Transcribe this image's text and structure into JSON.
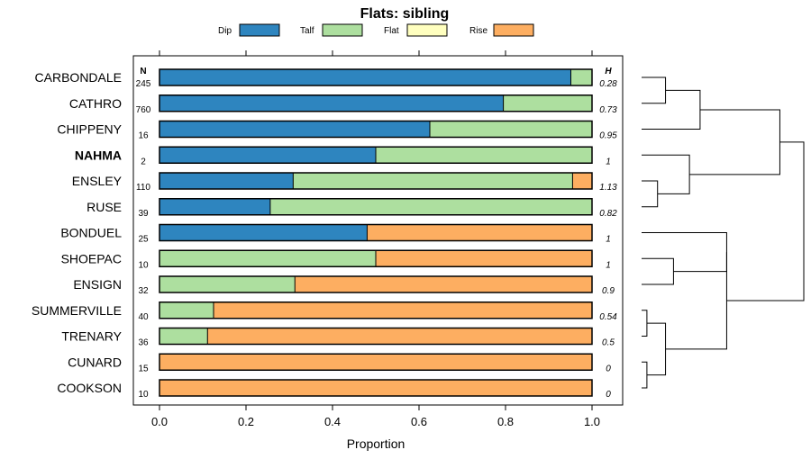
{
  "chart_data": {
    "type": "bar",
    "orientation": "horizontal",
    "stacked": true,
    "title": "Flats: sibling",
    "xlabel": "Proportion",
    "xlim": [
      0,
      1
    ],
    "xticks": [
      "0.0",
      "0.2",
      "0.4",
      "0.6",
      "0.8",
      "1.0"
    ],
    "xtick_values": [
      0,
      0.2,
      0.4,
      0.6,
      0.8,
      1.0
    ],
    "legend": [
      {
        "name": "Dip",
        "color": "#2e85bf"
      },
      {
        "name": "Talf",
        "color": "#addf9f"
      },
      {
        "name": "Flat",
        "color": "#ffffbf"
      },
      {
        "name": "Rise",
        "color": "#fdae61"
      }
    ],
    "n_header": "N",
    "h_header": "H",
    "categories": [
      "CARBONDALE",
      "CATHRO",
      "CHIPPENY",
      "NAHMA",
      "ENSLEY",
      "RUSE",
      "BONDUEL",
      "SHOEPAC",
      "ENSIGN",
      "SUMMERVILLE",
      "TRENARY",
      "CUNARD",
      "COOKSON"
    ],
    "bold_category": "NAHMA",
    "n": [
      "245",
      "760",
      "16",
      "2",
      "110",
      "39",
      "25",
      "10",
      "32",
      "40",
      "36",
      "15",
      "10"
    ],
    "h": [
      "0.28",
      "0.73",
      "0.95",
      "1",
      "1.13",
      "0.82",
      "1",
      "1",
      "0.9",
      "0.54",
      "0.5",
      "0",
      "0"
    ],
    "series": [
      {
        "name": "Dip",
        "values": [
          0.951,
          0.795,
          0.625,
          0.5,
          0.309,
          0.256,
          0.48,
          0,
          0,
          0,
          0,
          0,
          0
        ]
      },
      {
        "name": "Talf",
        "values": [
          0.049,
          0.205,
          0.375,
          0.5,
          0.646,
          0.744,
          0,
          0.5,
          0.313,
          0.125,
          0.111,
          0,
          0
        ]
      },
      {
        "name": "Flat",
        "values": [
          0,
          0,
          0,
          0,
          0,
          0,
          0,
          0,
          0,
          0,
          0,
          0,
          0
        ]
      },
      {
        "name": "Rise",
        "values": [
          0,
          0,
          0,
          0,
          0.045,
          0,
          0.52,
          0.5,
          0.687,
          0.875,
          0.889,
          1,
          1
        ]
      }
    ],
    "dendrogram_merges": [
      {
        "a": [
          "leaf",
          0
        ],
        "b": [
          "leaf",
          1
        ],
        "height": 0.09
      },
      {
        "a": [
          "node",
          0
        ],
        "b": [
          "leaf",
          2
        ],
        "height": 0.22
      },
      {
        "a": [
          "leaf",
          4
        ],
        "b": [
          "leaf",
          5
        ],
        "height": 0.06
      },
      {
        "a": [
          "leaf",
          3
        ],
        "b": [
          "node",
          2
        ],
        "height": 0.18
      },
      {
        "a": [
          "node",
          1
        ],
        "b": [
          "node",
          3
        ],
        "height": 0.52
      },
      {
        "a": [
          "leaf",
          7
        ],
        "b": [
          "leaf",
          8
        ],
        "height": 0.12
      },
      {
        "a": [
          "leaf",
          9
        ],
        "b": [
          "leaf",
          10
        ],
        "height": 0.02
      },
      {
        "a": [
          "leaf",
          11
        ],
        "b": [
          "leaf",
          12
        ],
        "height": 0.02
      },
      {
        "a": [
          "node",
          6
        ],
        "b": [
          "node",
          7
        ],
        "height": 0.09
      },
      {
        "a": [
          "leaf",
          6
        ],
        "b": [
          "node",
          5
        ],
        "height": 0.32
      },
      {
        "a": [
          "node",
          9
        ],
        "b": [
          "node",
          8
        ],
        "height": 0.32
      },
      {
        "a": [
          "node",
          4
        ],
        "b": [
          "node",
          10
        ],
        "height": 0.61
      }
    ]
  }
}
